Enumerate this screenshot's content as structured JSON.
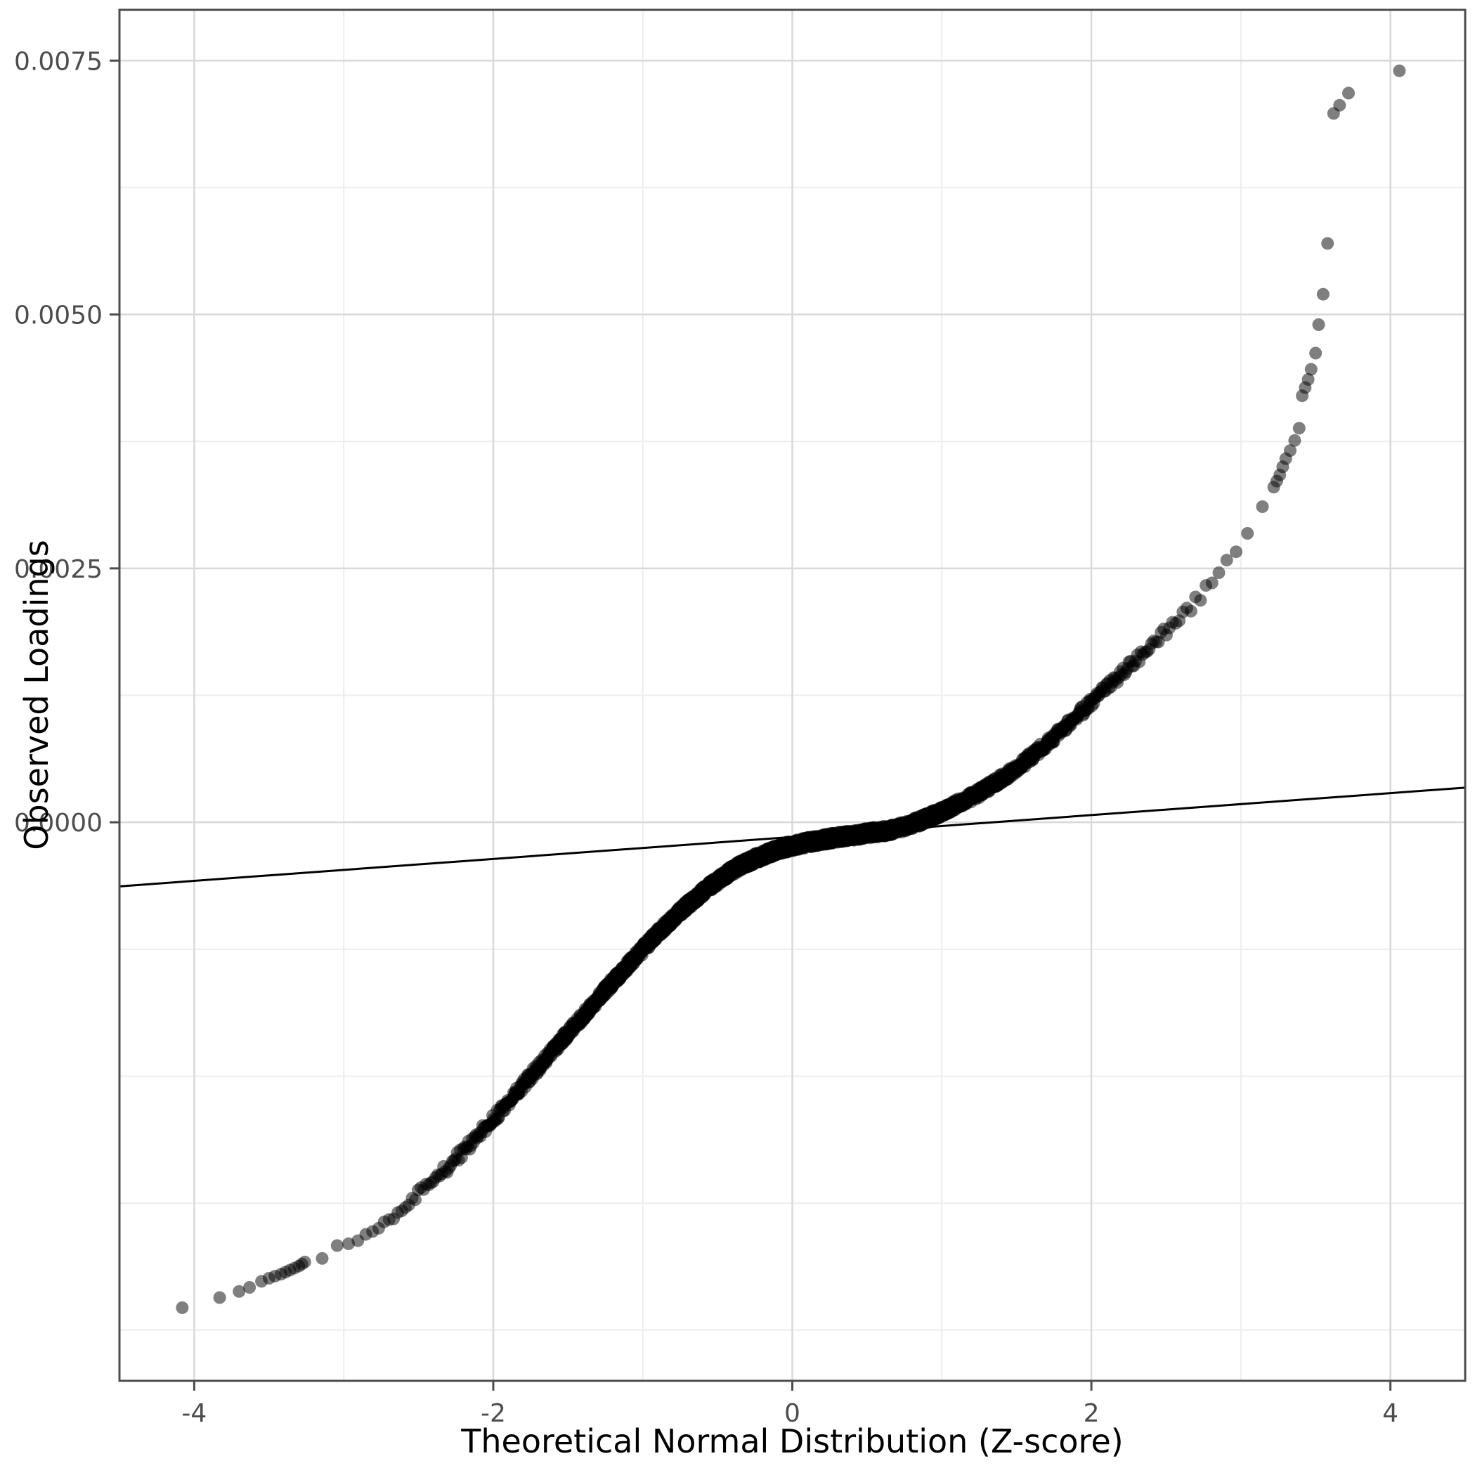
{
  "chart_data": {
    "type": "scatter",
    "subtype": "qq-plot",
    "title": "",
    "xlabel": "Theoretical Normal Distribution (Z-score)",
    "ylabel": "Observed Loadings",
    "xlim": [
      -4.5,
      4.5
    ],
    "ylim": [
      -0.0055,
      0.008
    ],
    "x_ticks": [
      -4,
      -2,
      0,
      2,
      4
    ],
    "x_tick_labels": [
      "-4",
      "-2",
      "0",
      "2",
      "4"
    ],
    "y_ticks": [
      0,
      0.0025,
      0.005,
      0.0075
    ],
    "y_tick_labels": [
      "0.0000",
      "0.0025",
      "0.0050",
      "0.0075"
    ],
    "grid": true,
    "legend": false,
    "reference_line": {
      "slope": 0.000108,
      "intercept": -0.000145
    },
    "band_z_range": [
      -3.24,
      3.21
    ],
    "band_thickness_jitter": 5e-05,
    "n_points_rendered": 3000,
    "qq_curve": [
      [
        -3.25,
        -0.00432
      ],
      [
        -3.15,
        -0.00427
      ],
      [
        -3.05,
        -0.00421
      ],
      [
        -2.95,
        -0.00414
      ],
      [
        -2.85,
        -0.00406
      ],
      [
        -2.75,
        -0.00396
      ],
      [
        -2.65,
        -0.00385
      ],
      [
        -2.55,
        -0.00373
      ],
      [
        -2.45,
        -0.0036
      ],
      [
        -2.35,
        -0.00346
      ],
      [
        -2.25,
        -0.00331
      ],
      [
        -2.15,
        -0.00316
      ],
      [
        -2.05,
        -0.003
      ],
      [
        -1.95,
        -0.00284
      ],
      [
        -1.85,
        -0.00267
      ],
      [
        -1.75,
        -0.0025
      ],
      [
        -1.65,
        -0.00233
      ],
      [
        -1.55,
        -0.00216
      ],
      [
        -1.45,
        -0.00199
      ],
      [
        -1.35,
        -0.00182
      ],
      [
        -1.25,
        -0.00165
      ],
      [
        -1.15,
        -0.00149
      ],
      [
        -1.05,
        -0.00133
      ],
      [
        -0.95,
        -0.00117
      ],
      [
        -0.85,
        -0.00102
      ],
      [
        -0.75,
        -0.00088
      ],
      [
        -0.65,
        -0.00075
      ],
      [
        -0.55,
        -0.00063
      ],
      [
        -0.45,
        -0.00052
      ],
      [
        -0.35,
        -0.00043
      ],
      [
        -0.25,
        -0.00036
      ],
      [
        -0.15,
        -0.0003
      ],
      [
        -0.05,
        -0.00025
      ],
      [
        0.05,
        -0.000215
      ],
      [
        0.15,
        -0.000185
      ],
      [
        0.25,
        -0.00016
      ],
      [
        0.35,
        -0.00014
      ],
      [
        0.45,
        -0.00012
      ],
      [
        0.55,
        -0.0001
      ],
      [
        0.65,
        -8e-05
      ],
      [
        0.75,
        -4e-05
      ],
      [
        0.85,
        1e-05
      ],
      [
        0.95,
        7e-05
      ],
      [
        1.05,
        0.00014
      ],
      [
        1.15,
        0.00021
      ],
      [
        1.25,
        0.00029
      ],
      [
        1.35,
        0.00038
      ],
      [
        1.45,
        0.00048
      ],
      [
        1.55,
        0.00059
      ],
      [
        1.65,
        0.00071
      ],
      [
        1.75,
        0.00084
      ],
      [
        1.85,
        0.00097
      ],
      [
        1.95,
        0.00111
      ],
      [
        2.05,
        0.00125
      ],
      [
        2.15,
        0.00139
      ],
      [
        2.25,
        0.00153
      ],
      [
        2.35,
        0.00167
      ],
      [
        2.45,
        0.00181
      ],
      [
        2.55,
        0.00195
      ],
      [
        2.65,
        0.0021
      ],
      [
        2.75,
        0.00226
      ],
      [
        2.85,
        0.00243
      ],
      [
        2.95,
        0.00262
      ],
      [
        3.05,
        0.00284
      ],
      [
        3.12,
        0.003
      ],
      [
        3.18,
        0.00315
      ],
      [
        3.22,
        0.00328
      ]
    ],
    "lower_tail_points": [
      [
        -4.08,
        -0.00478
      ],
      [
        -3.83,
        -0.00468
      ],
      [
        -3.7,
        -0.00462
      ],
      [
        -3.63,
        -0.00458
      ],
      [
        -3.55,
        -0.00452
      ],
      [
        -3.5,
        -0.00449
      ],
      [
        -3.46,
        -0.00447
      ],
      [
        -3.42,
        -0.00445
      ],
      [
        -3.39,
        -0.00443
      ],
      [
        -3.36,
        -0.00441
      ],
      [
        -3.33,
        -0.00439
      ],
      [
        -3.3,
        -0.00437
      ],
      [
        -3.28,
        -0.00435
      ],
      [
        -3.26,
        -0.00433
      ]
    ],
    "upper_tail_points": [
      [
        3.22,
        0.0033
      ],
      [
        3.24,
        0.00336
      ],
      [
        3.26,
        0.00342
      ],
      [
        3.28,
        0.0035
      ],
      [
        3.3,
        0.00358
      ],
      [
        3.33,
        0.00366
      ],
      [
        3.36,
        0.00376
      ],
      [
        3.39,
        0.00388
      ],
      [
        3.41,
        0.0042
      ],
      [
        3.43,
        0.00428
      ],
      [
        3.45,
        0.00436
      ],
      [
        3.47,
        0.00446
      ],
      [
        3.5,
        0.00462
      ],
      [
        3.52,
        0.0049
      ],
      [
        3.55,
        0.0052
      ],
      [
        3.58,
        0.0057
      ],
      [
        3.62,
        0.00698
      ],
      [
        3.66,
        0.00706
      ],
      [
        3.72,
        0.00718
      ],
      [
        4.06,
        0.0074
      ]
    ],
    "style": {
      "background": "#ffffff",
      "point_color": "#000000",
      "point_opacity": 0.5,
      "point_radius": 9,
      "line_color": "#000000",
      "grid_major": "#d9d9d9",
      "grid_minor": "#ededed",
      "panel_border": "#4d4d4d",
      "axis_text_color": "#4d4d4d",
      "title_color": "#000000"
    }
  }
}
